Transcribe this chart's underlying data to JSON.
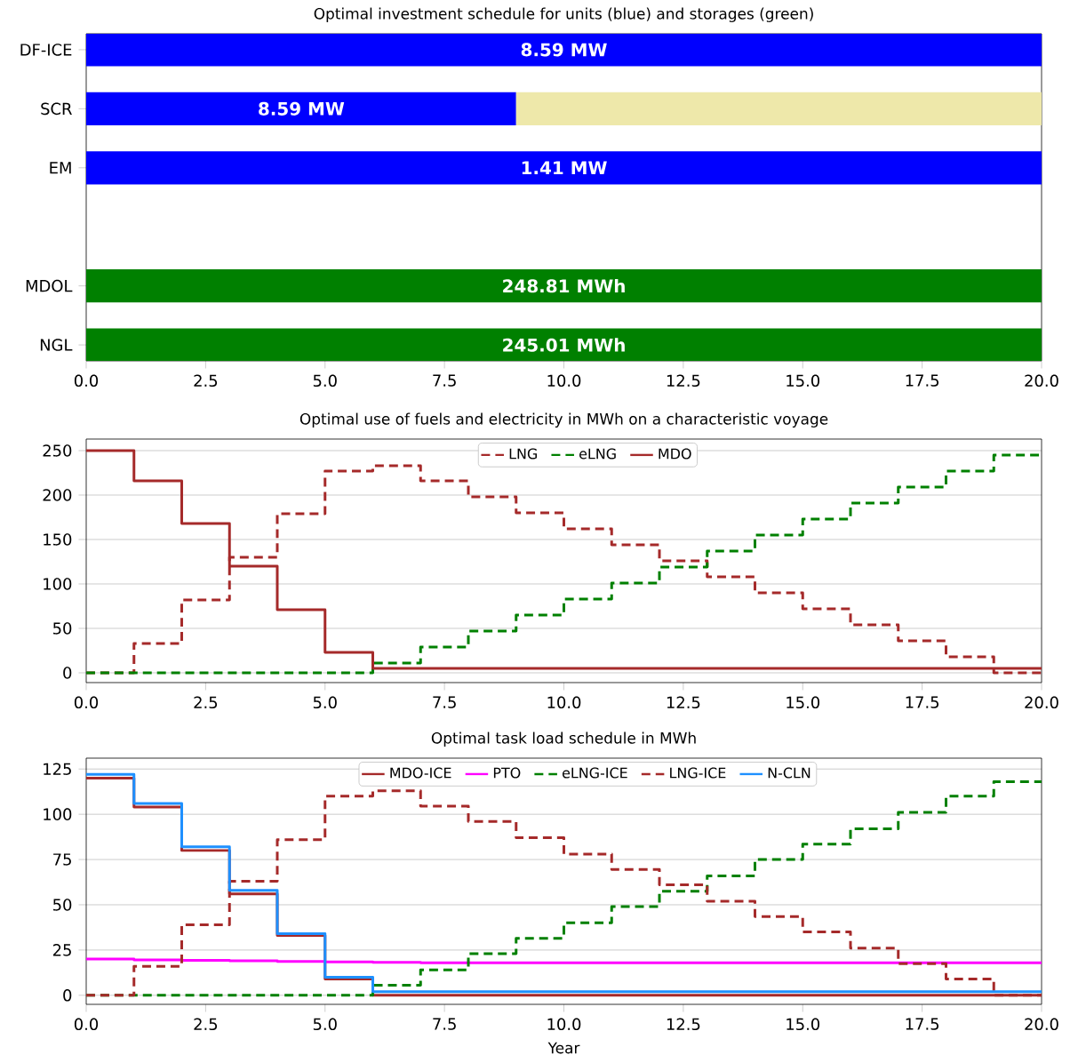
{
  "chart_data": [
    {
      "type": "bar",
      "orientation": "horizontal",
      "stacked": true,
      "title": "Optimal investment schedule for units (blue) and storages (green)",
      "categories": [
        "DF-ICE",
        "SCR",
        "EM",
        null,
        "MDOL",
        "NGL"
      ],
      "series": [
        {
          "color": "#0000ff",
          "values": [
            20,
            9,
            20,
            null,
            null,
            null
          ]
        },
        {
          "color": "#eee8aa",
          "values": [
            null,
            11,
            null,
            null,
            null,
            null
          ]
        },
        {
          "color": "#008000",
          "values": [
            null,
            null,
            null,
            null,
            20,
            20
          ]
        }
      ],
      "annotations": [
        "8.59 MW",
        "8.59 MW",
        "1.41 MW",
        "248.81 MWh",
        "245.01 MWh"
      ],
      "xlim": [
        0,
        20
      ],
      "xticks": [
        {
          "value": 0,
          "label": "0.0"
        },
        {
          "value": 2.5,
          "label": "2.5"
        },
        {
          "value": 5,
          "label": "5.0"
        },
        {
          "value": 7.5,
          "label": "7.5"
        },
        {
          "value": 10,
          "label": "10.0"
        },
        {
          "value": 12.5,
          "label": "12.5"
        },
        {
          "value": 15,
          "label": "15.0"
        },
        {
          "value": 17.5,
          "label": "17.5"
        },
        {
          "value": 20,
          "label": "20.0"
        }
      ]
    },
    {
      "type": "step",
      "title": "Optimal use of fuels and electricity in MWh on a characteristic voyage",
      "x": [
        0,
        1,
        2,
        3,
        4,
        5,
        6,
        7,
        8,
        9,
        10,
        11,
        12,
        13,
        14,
        15,
        16,
        17,
        18,
        19,
        20
      ],
      "series": [
        {
          "name": "LNG",
          "color": "#a52a2a",
          "line_style": "dashed",
          "values": [
            0,
            33,
            82,
            130,
            179,
            227,
            233,
            216,
            198,
            180,
            162,
            144,
            126,
            108,
            90,
            72,
            54,
            36,
            18,
            0,
            0
          ]
        },
        {
          "name": "eLNG",
          "color": "#008000",
          "line_style": "dashed",
          "values": [
            0,
            0,
            0,
            0,
            0,
            0,
            11,
            29,
            47,
            65,
            83,
            101,
            119,
            137,
            155,
            173,
            191,
            209,
            227,
            245,
            245
          ]
        },
        {
          "name": "MDO",
          "color": "#a52a2a",
          "line_style": "solid",
          "values": [
            250,
            216,
            168,
            120,
            71,
            23,
            5,
            5,
            5,
            5,
            5,
            5,
            5,
            5,
            5,
            5,
            5,
            5,
            5,
            5,
            5
          ]
        }
      ],
      "xlim": [
        0,
        20
      ],
      "ylim": [
        -11,
        263
      ],
      "xticks": [
        {
          "value": 0,
          "label": "0.0"
        },
        {
          "value": 2.5,
          "label": "2.5"
        },
        {
          "value": 5,
          "label": "5.0"
        },
        {
          "value": 7.5,
          "label": "7.5"
        },
        {
          "value": 10,
          "label": "10.0"
        },
        {
          "value": 12.5,
          "label": "12.5"
        },
        {
          "value": 15,
          "label": "15.0"
        },
        {
          "value": 17.5,
          "label": "17.5"
        },
        {
          "value": 20,
          "label": "20.0"
        }
      ],
      "yticks": [
        0,
        50,
        100,
        150,
        200,
        250
      ],
      "grid": "y",
      "legend": "top"
    },
    {
      "type": "step",
      "title": "Optimal task load schedule in MWh",
      "xlabel": "Year",
      "x": [
        0,
        1,
        2,
        3,
        4,
        5,
        6,
        7,
        8,
        9,
        10,
        11,
        12,
        13,
        14,
        15,
        16,
        17,
        18,
        19,
        20
      ],
      "series": [
        {
          "name": "MDO-ICE",
          "color": "#a52a2a",
          "line_style": "solid",
          "values": [
            120,
            104,
            80,
            56,
            33,
            9,
            0,
            0,
            0,
            0,
            0,
            0,
            0,
            0,
            0,
            0,
            0,
            0,
            0,
            0,
            0
          ]
        },
        {
          "name": "PTO",
          "color": "#ff00ff",
          "line_style": "solid",
          "values": [
            20,
            19.6,
            19.3,
            19,
            18.7,
            18.4,
            18.2,
            18,
            18,
            18,
            18,
            18,
            18,
            18,
            18,
            18,
            18,
            18,
            18,
            18,
            18
          ]
        },
        {
          "name": "eLNG-ICE",
          "color": "#008000",
          "line_style": "dashed",
          "values": [
            0,
            0,
            0,
            0,
            0,
            0,
            5.5,
            14,
            23,
            31.5,
            40,
            49,
            57.5,
            66,
            75,
            83.5,
            92,
            101,
            110,
            118,
            118
          ]
        },
        {
          "name": "LNG-ICE",
          "color": "#a52a2a",
          "line_style": "dashed",
          "values": [
            0,
            16,
            39,
            63,
            86,
            110,
            113,
            104.5,
            96,
            87,
            78,
            69.5,
            61,
            52,
            43.5,
            35,
            26,
            17.5,
            9,
            0,
            0
          ]
        },
        {
          "name": "N-CLN",
          "color": "#1e90ff",
          "line_style": "solid",
          "values": [
            122,
            106,
            82,
            58,
            34,
            10,
            2,
            2,
            2,
            2,
            2,
            2,
            2,
            2,
            2,
            2,
            2,
            2,
            2,
            2,
            2
          ]
        }
      ],
      "xlim": [
        0,
        20
      ],
      "ylim": [
        -5,
        131
      ],
      "xticks": [
        {
          "value": 0,
          "label": "0.0"
        },
        {
          "value": 2.5,
          "label": "2.5"
        },
        {
          "value": 5,
          "label": "5.0"
        },
        {
          "value": 7.5,
          "label": "7.5"
        },
        {
          "value": 10,
          "label": "10.0"
        },
        {
          "value": 12.5,
          "label": "12.5"
        },
        {
          "value": 15,
          "label": "15.0"
        },
        {
          "value": 17.5,
          "label": "17.5"
        },
        {
          "value": 20,
          "label": "20.0"
        }
      ],
      "yticks": [
        0,
        25,
        50,
        75,
        100,
        125
      ],
      "grid": "y",
      "legend": "top"
    }
  ]
}
